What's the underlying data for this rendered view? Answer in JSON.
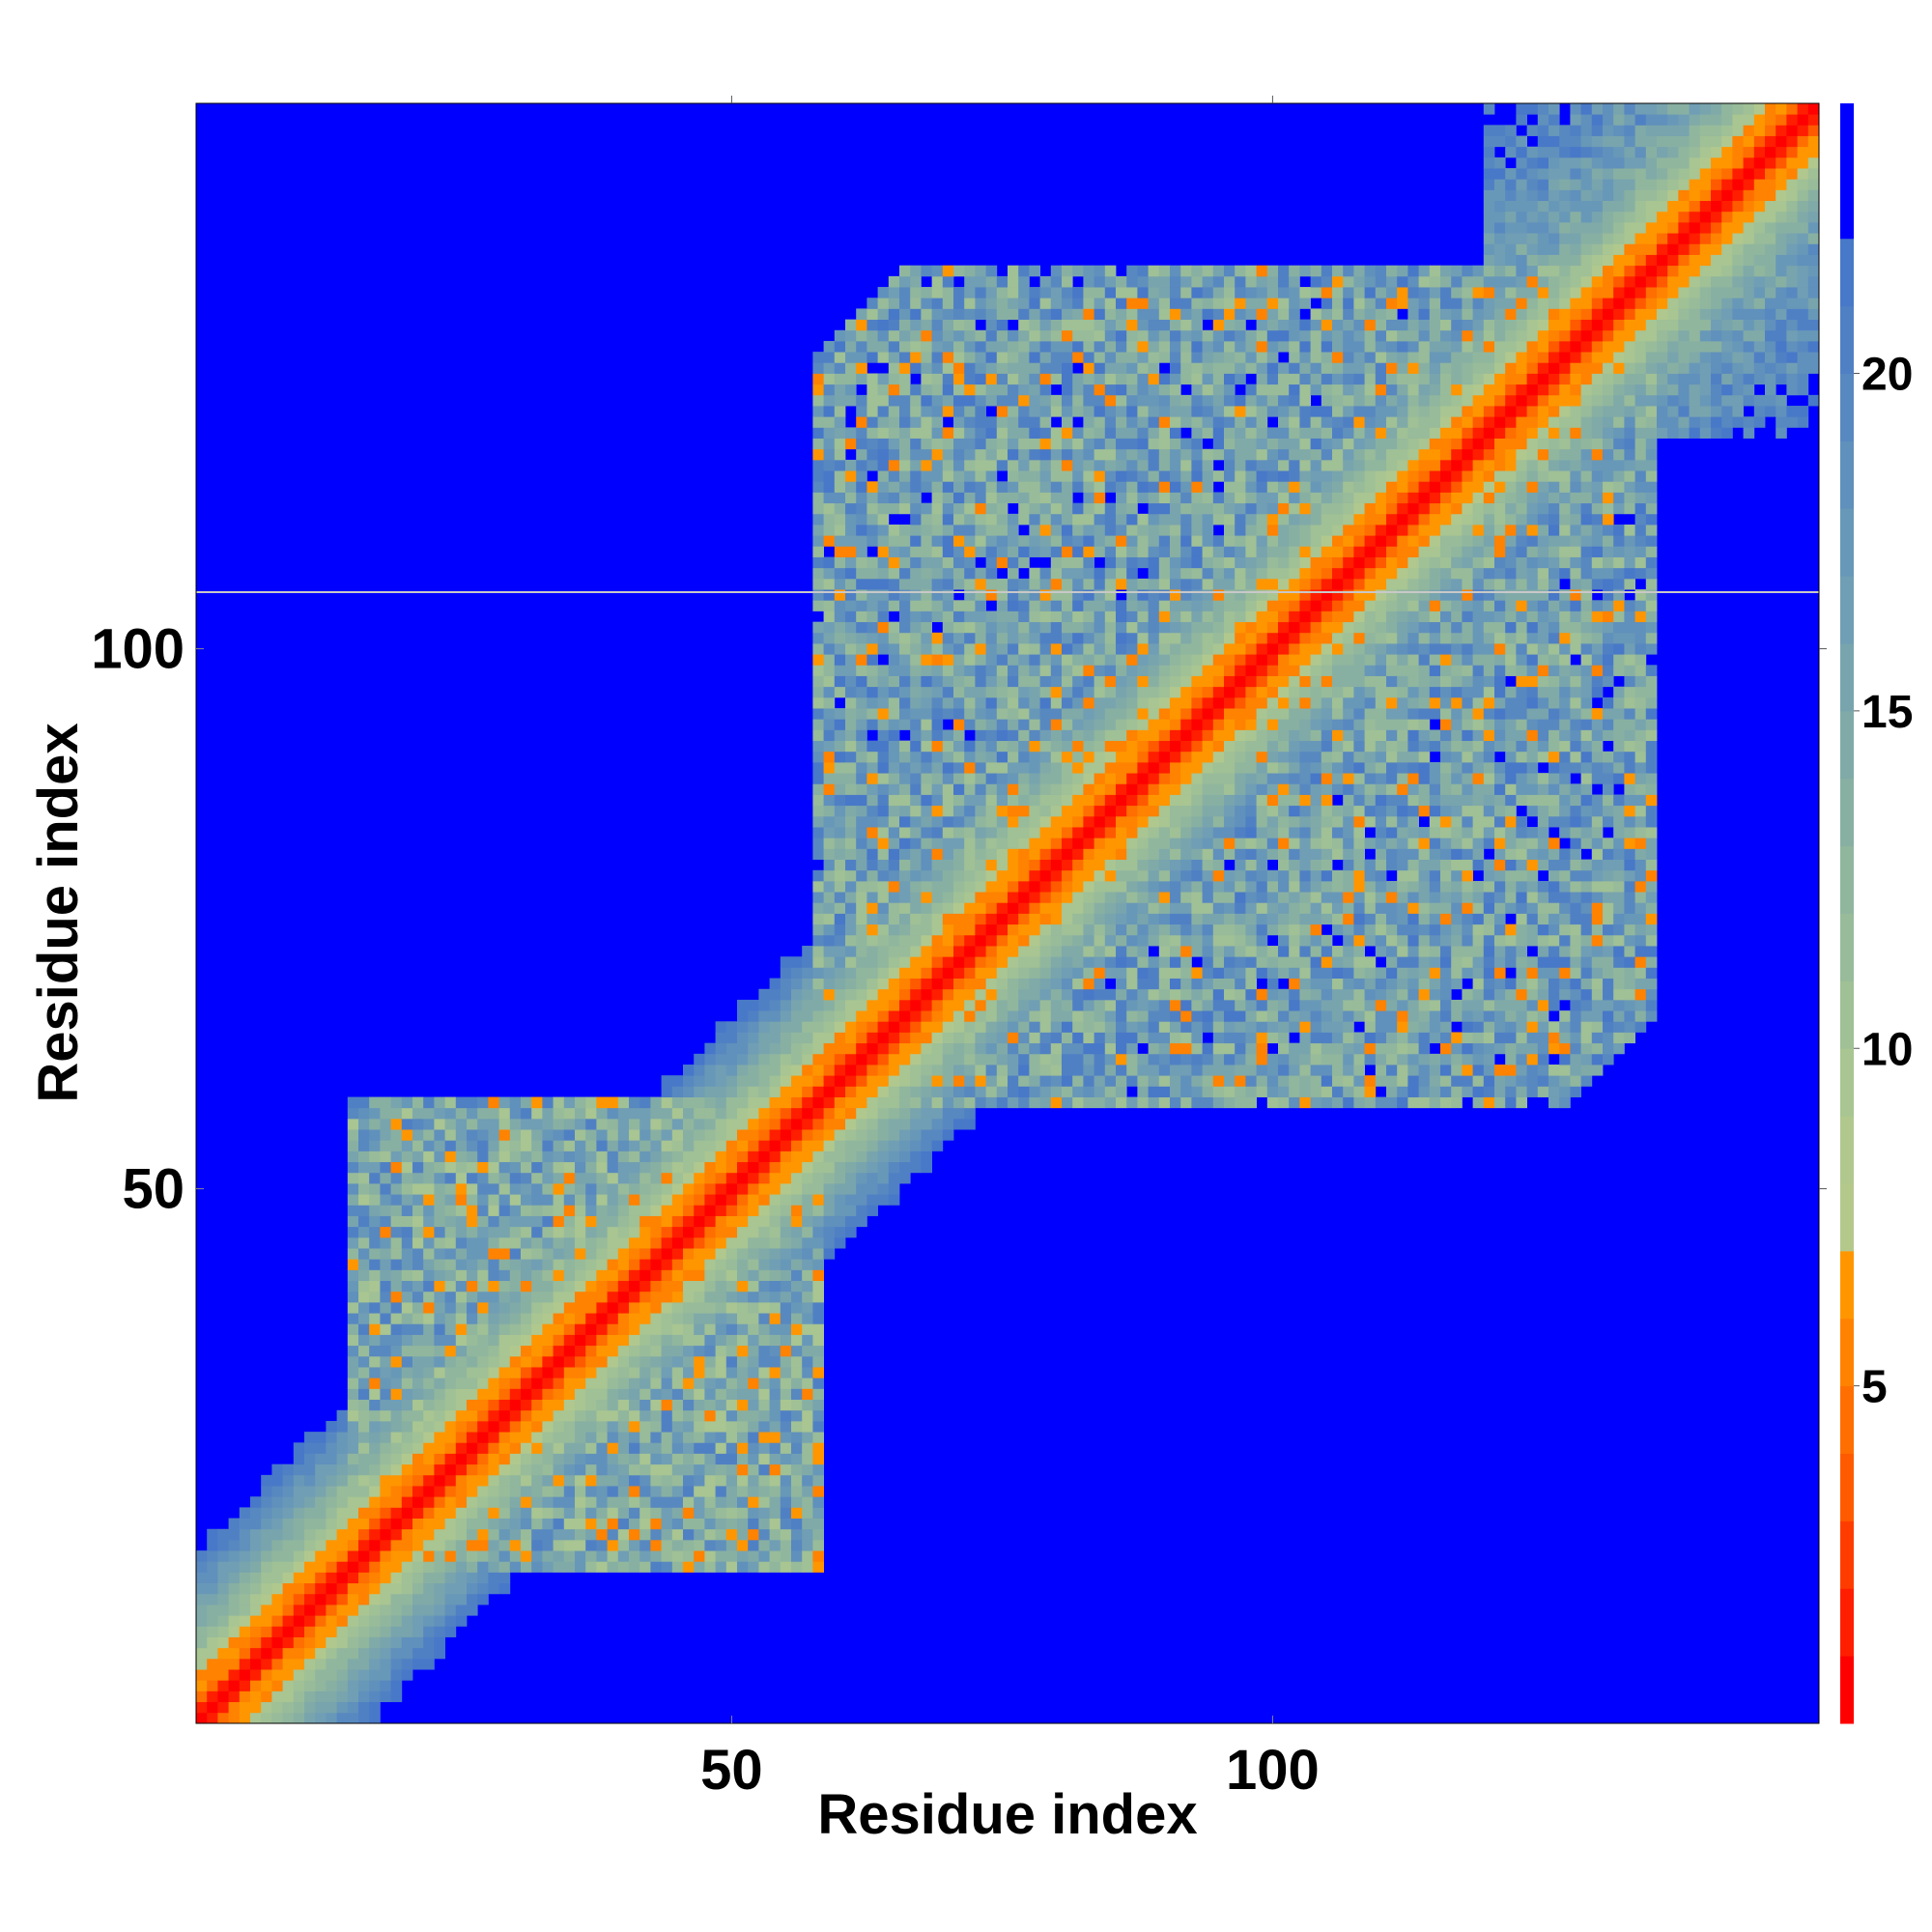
{
  "chart_data": {
    "type": "heatmap",
    "title": "",
    "xlabel": "Residue index",
    "ylabel": "Residue index",
    "n_residues": 150,
    "xlim": [
      0.5,
      150.5
    ],
    "ylim": [
      0.5,
      150.5
    ],
    "x_ticks": [
      50,
      100
    ],
    "y_ticks": [
      50,
      100
    ],
    "grid": false,
    "colorbar": {
      "range": [
        0,
        24
      ],
      "ticks": [
        5,
        10,
        15,
        20
      ],
      "placement": "right",
      "levels": [
        {
          "from": 0,
          "to": 1,
          "color": "#ff0000"
        },
        {
          "from": 1,
          "to": 2,
          "color": "#ff1e00"
        },
        {
          "from": 2,
          "to": 3,
          "color": "#ff3c00"
        },
        {
          "from": 3,
          "to": 4,
          "color": "#ff5a00"
        },
        {
          "from": 4,
          "to": 5,
          "color": "#ff6e00"
        },
        {
          "from": 5,
          "to": 6,
          "color": "#ff8200"
        },
        {
          "from": 6,
          "to": 7,
          "color": "#ff9600"
        },
        {
          "from": 7,
          "to": 8,
          "color": "#b4c88c"
        },
        {
          "from": 8,
          "to": 9,
          "color": "#b0c88e"
        },
        {
          "from": 9,
          "to": 10,
          "color": "#a8c592"
        },
        {
          "from": 10,
          "to": 11,
          "color": "#a0c096"
        },
        {
          "from": 11,
          "to": 12,
          "color": "#98bb9a"
        },
        {
          "from": 12,
          "to": 13,
          "color": "#90b69e"
        },
        {
          "from": 13,
          "to": 14,
          "color": "#88b0a2"
        },
        {
          "from": 14,
          "to": 15,
          "color": "#80aaa8"
        },
        {
          "from": 15,
          "to": 16,
          "color": "#78a4ae"
        },
        {
          "from": 16,
          "to": 17,
          "color": "#709eb4"
        },
        {
          "from": 17,
          "to": 18,
          "color": "#6898b8"
        },
        {
          "from": 18,
          "to": 19,
          "color": "#6090bc"
        },
        {
          "from": 19,
          "to": 20,
          "color": "#5888c0"
        },
        {
          "from": 20,
          "to": 21,
          "color": "#5080c4"
        },
        {
          "from": 21,
          "to": 22,
          "color": "#4878c8"
        },
        {
          "from": 22,
          "to": 24,
          "color": "#0000ff"
        }
      ]
    },
    "background_color": "#0000ff",
    "description_regions": [
      {
        "name": "diagonal",
        "distance_to_value": "increasing with |i-j|"
      },
      {
        "name": "domain-1",
        "x_range": [
          15,
          58
        ],
        "y_range": [
          15,
          60
        ]
      },
      {
        "name": "domain-2",
        "x_range": [
          58,
          135
        ],
        "y_range": [
          60,
          135
        ]
      }
    ]
  }
}
